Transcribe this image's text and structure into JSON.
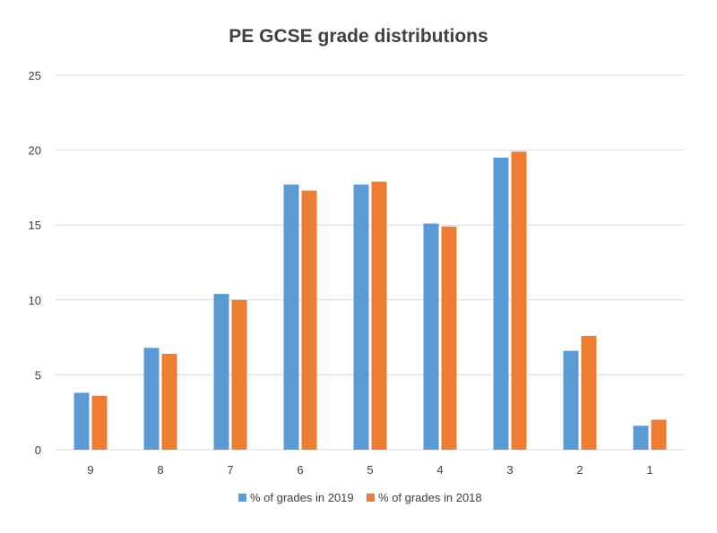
{
  "chart_data": {
    "type": "bar",
    "title": "PE GCSE grade distributions",
    "xlabel": "",
    "ylabel": "",
    "categories": [
      "9",
      "8",
      "7",
      "6",
      "5",
      "4",
      "3",
      "2",
      "1"
    ],
    "series": [
      {
        "name": "% of grades in 2019",
        "color": "#5b9bd5",
        "values": [
          3.8,
          6.8,
          10.4,
          17.7,
          17.7,
          15.1,
          19.5,
          6.6,
          1.6
        ]
      },
      {
        "name": "% of grades in 2018",
        "color": "#ed7d31",
        "values": [
          3.6,
          6.4,
          10.0,
          17.3,
          17.9,
          14.9,
          19.9,
          7.6,
          2.0
        ]
      }
    ],
    "ylim": [
      0,
      25
    ],
    "yticks": [
      0,
      5,
      10,
      15,
      20,
      25
    ],
    "grid": true,
    "legend_position": "bottom"
  }
}
